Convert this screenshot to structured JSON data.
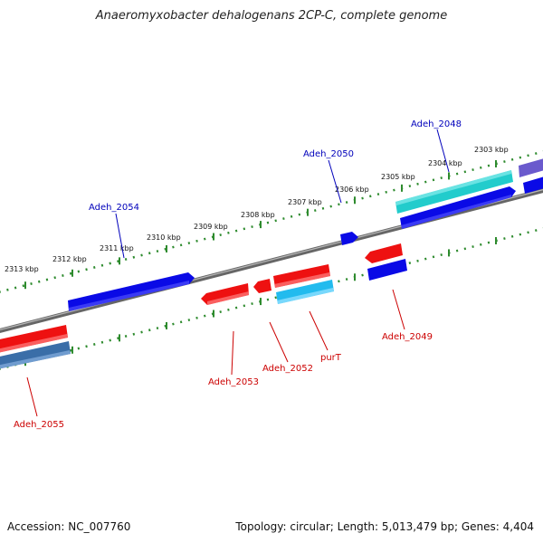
{
  "title": "Anaeromyxobacter dehalogenans 2CP-C, complete genome",
  "footer": {
    "accession": "Accession: NC_007760",
    "summary": "Topology: circular; Length: 5,013,479 bp; Genes: 4,404"
  },
  "kbp_labels": [
    "2313 kbp",
    "2312 kbp",
    "2311 kbp",
    "2310 kbp",
    "2309 kbp",
    "2308 kbp",
    "2307 kbp",
    "2306 kbp",
    "2305 kbp",
    "2304 kbp",
    "2303 kbp"
  ],
  "gene_labels": {
    "adeh_2048": "Adeh_2048",
    "adeh_2049": "Adeh_2049",
    "adeh_2050": "Adeh_2050",
    "adeh_2052": "Adeh_2052",
    "adeh_2053": "Adeh_2053",
    "adeh_2054": "Adeh_2054",
    "adeh_2055": "Adeh_2055",
    "purT": "purT"
  },
  "colors": {
    "forward_label": "#0000bb",
    "reverse_label": "#cc0000",
    "ruler": "#2e8b2e",
    "backbone": "#777777",
    "gene_blue": "#0a0ae6",
    "gene_red": "#ee1111",
    "gene_cyan": "#22cccc",
    "gene_skyblue": "#22bbee",
    "gene_steel": "#3a6ea8",
    "gene_purple": "#6a5acd"
  }
}
